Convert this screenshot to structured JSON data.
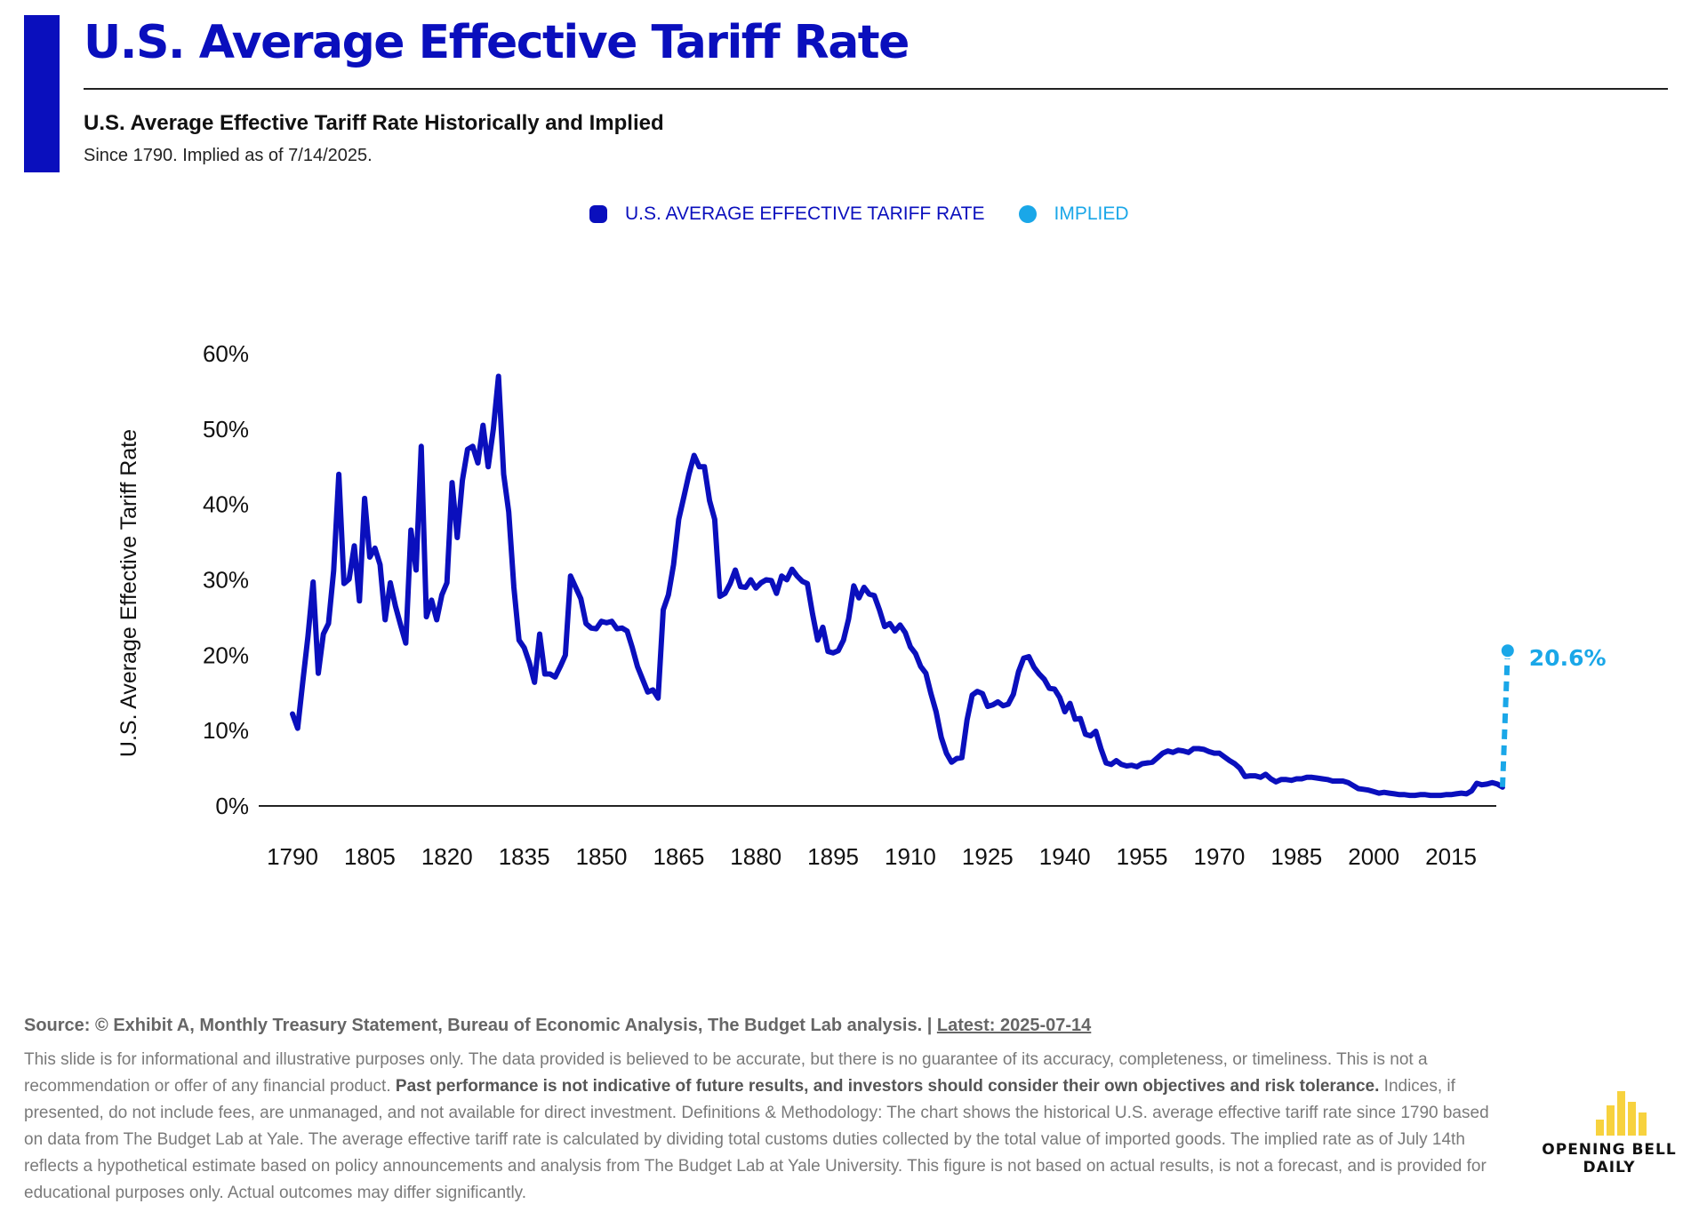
{
  "header": {
    "title": "U.S. Average Effective Tariff Rate",
    "subtitle": "U.S. Average Effective Tariff Rate Historically and Implied",
    "note": "Since 1790. Implied as of 7/14/2025."
  },
  "legend": {
    "main_label": "U.S. AVERAGE EFFECTIVE TARIFF RATE",
    "implied_label": "IMPLIED"
  },
  "colors": {
    "brand_blue": "#0a0fbd",
    "implied_blue": "#1aa7e8",
    "logo_yellow": "#f7d23e"
  },
  "chart_data": {
    "type": "line",
    "ylabel": "U.S. Average Effective Tariff Rate",
    "ylim": [
      0,
      60
    ],
    "xlim": [
      1790,
      2025
    ],
    "y_ticks": [
      "0%",
      "10%",
      "20%",
      "30%",
      "40%",
      "50%",
      "60%"
    ],
    "x_ticks": [
      "1790",
      "1805",
      "1820",
      "1835",
      "1850",
      "1865",
      "1880",
      "1895",
      "1910",
      "1925",
      "1940",
      "1955",
      "1970",
      "1985",
      "2000",
      "2015"
    ],
    "grid": false,
    "legend_position": "top-center",
    "series": [
      {
        "name": "U.S. AVERAGE EFFECTIVE TARIFF RATE",
        "color": "#0a0fbd",
        "points": [
          [
            1790,
            12.2
          ],
          [
            1791,
            10.3
          ],
          [
            1792,
            16.5
          ],
          [
            1793,
            22.5
          ],
          [
            1794,
            29.7
          ],
          [
            1795,
            17.6
          ],
          [
            1796,
            22.8
          ],
          [
            1797,
            24.2
          ],
          [
            1798,
            31.2
          ],
          [
            1799,
            44.0
          ],
          [
            1800,
            29.5
          ],
          [
            1801,
            30.1
          ],
          [
            1802,
            34.5
          ],
          [
            1803,
            27.2
          ],
          [
            1804,
            40.8
          ],
          [
            1805,
            33.0
          ],
          [
            1806,
            34.2
          ],
          [
            1807,
            32.0
          ],
          [
            1808,
            24.7
          ],
          [
            1809,
            29.6
          ],
          [
            1810,
            26.5
          ],
          [
            1811,
            24.0
          ],
          [
            1812,
            21.6
          ],
          [
            1813,
            36.6
          ],
          [
            1814,
            31.3
          ],
          [
            1815,
            47.7
          ],
          [
            1816,
            25.1
          ],
          [
            1817,
            27.3
          ],
          [
            1818,
            24.7
          ],
          [
            1819,
            28.0
          ],
          [
            1820,
            29.6
          ],
          [
            1821,
            42.9
          ],
          [
            1822,
            35.6
          ],
          [
            1823,
            43.2
          ],
          [
            1824,
            47.3
          ],
          [
            1825,
            47.7
          ],
          [
            1826,
            45.5
          ],
          [
            1827,
            50.5
          ],
          [
            1828,
            45.0
          ],
          [
            1829,
            50.0
          ],
          [
            1830,
            57.0
          ],
          [
            1831,
            44.0
          ],
          [
            1832,
            39.0
          ],
          [
            1833,
            29.0
          ],
          [
            1834,
            22.0
          ],
          [
            1835,
            21.0
          ],
          [
            1836,
            19.0
          ],
          [
            1837,
            16.4
          ],
          [
            1838,
            22.8
          ],
          [
            1839,
            17.5
          ],
          [
            1840,
            17.5
          ],
          [
            1841,
            17.1
          ],
          [
            1842,
            18.5
          ],
          [
            1843,
            20.0
          ],
          [
            1844,
            30.5
          ],
          [
            1845,
            29.0
          ],
          [
            1846,
            27.5
          ],
          [
            1847,
            24.2
          ],
          [
            1848,
            23.6
          ],
          [
            1849,
            23.5
          ],
          [
            1850,
            24.5
          ],
          [
            1851,
            24.3
          ],
          [
            1852,
            24.5
          ],
          [
            1853,
            23.5
          ],
          [
            1854,
            23.6
          ],
          [
            1855,
            23.2
          ],
          [
            1856,
            21.0
          ],
          [
            1857,
            18.5
          ],
          [
            1858,
            16.8
          ],
          [
            1859,
            15.1
          ],
          [
            1860,
            15.4
          ],
          [
            1861,
            14.3
          ],
          [
            1862,
            26.0
          ],
          [
            1863,
            28.0
          ],
          [
            1864,
            32.0
          ],
          [
            1865,
            38.0
          ],
          [
            1866,
            41.0
          ],
          [
            1867,
            44.0
          ],
          [
            1868,
            46.5
          ],
          [
            1869,
            45.0
          ],
          [
            1870,
            45.0
          ],
          [
            1871,
            40.5
          ],
          [
            1872,
            38.0
          ],
          [
            1873,
            27.8
          ],
          [
            1874,
            28.2
          ],
          [
            1875,
            29.5
          ],
          [
            1876,
            31.3
          ],
          [
            1877,
            29.1
          ],
          [
            1878,
            29.0
          ],
          [
            1879,
            30.0
          ],
          [
            1880,
            28.9
          ],
          [
            1881,
            29.6
          ],
          [
            1882,
            30.0
          ],
          [
            1883,
            29.9
          ],
          [
            1884,
            28.2
          ],
          [
            1885,
            30.5
          ],
          [
            1886,
            30.0
          ],
          [
            1887,
            31.4
          ],
          [
            1888,
            30.5
          ],
          [
            1889,
            29.8
          ],
          [
            1890,
            29.5
          ],
          [
            1891,
            25.5
          ],
          [
            1892,
            22.0
          ],
          [
            1893,
            23.7
          ],
          [
            1894,
            20.5
          ],
          [
            1895,
            20.3
          ],
          [
            1896,
            20.6
          ],
          [
            1897,
            22.0
          ],
          [
            1898,
            24.8
          ],
          [
            1899,
            29.2
          ],
          [
            1900,
            27.6
          ],
          [
            1901,
            29.0
          ],
          [
            1902,
            28.1
          ],
          [
            1903,
            27.9
          ],
          [
            1904,
            26.0
          ],
          [
            1905,
            23.8
          ],
          [
            1906,
            24.2
          ],
          [
            1907,
            23.2
          ],
          [
            1908,
            24.0
          ],
          [
            1909,
            23.0
          ],
          [
            1910,
            21.1
          ],
          [
            1911,
            20.2
          ],
          [
            1912,
            18.5
          ],
          [
            1913,
            17.6
          ],
          [
            1914,
            14.9
          ],
          [
            1915,
            12.5
          ],
          [
            1916,
            9.1
          ],
          [
            1917,
            7.0
          ],
          [
            1918,
            5.8
          ],
          [
            1919,
            6.3
          ],
          [
            1920,
            6.4
          ],
          [
            1921,
            11.4
          ],
          [
            1922,
            14.7
          ],
          [
            1923,
            15.2
          ],
          [
            1924,
            14.9
          ],
          [
            1925,
            13.2
          ],
          [
            1926,
            13.4
          ],
          [
            1927,
            13.8
          ],
          [
            1928,
            13.3
          ],
          [
            1929,
            13.5
          ],
          [
            1930,
            14.8
          ],
          [
            1931,
            17.8
          ],
          [
            1932,
            19.6
          ],
          [
            1933,
            19.8
          ],
          [
            1934,
            18.4
          ],
          [
            1935,
            17.5
          ],
          [
            1936,
            16.8
          ],
          [
            1937,
            15.6
          ],
          [
            1938,
            15.5
          ],
          [
            1939,
            14.4
          ],
          [
            1940,
            12.5
          ],
          [
            1941,
            13.6
          ],
          [
            1942,
            11.5
          ],
          [
            1943,
            11.6
          ],
          [
            1944,
            9.5
          ],
          [
            1945,
            9.3
          ],
          [
            1946,
            9.9
          ],
          [
            1947,
            7.6
          ],
          [
            1948,
            5.7
          ],
          [
            1949,
            5.5
          ],
          [
            1950,
            6.0
          ],
          [
            1951,
            5.5
          ],
          [
            1952,
            5.3
          ],
          [
            1953,
            5.4
          ],
          [
            1954,
            5.2
          ],
          [
            1955,
            5.6
          ],
          [
            1956,
            5.7
          ],
          [
            1957,
            5.8
          ],
          [
            1958,
            6.4
          ],
          [
            1959,
            7.0
          ],
          [
            1960,
            7.3
          ],
          [
            1961,
            7.1
          ],
          [
            1962,
            7.4
          ],
          [
            1963,
            7.3
          ],
          [
            1964,
            7.1
          ],
          [
            1965,
            7.6
          ],
          [
            1966,
            7.6
          ],
          [
            1967,
            7.5
          ],
          [
            1968,
            7.2
          ],
          [
            1969,
            7.0
          ],
          [
            1970,
            7.0
          ],
          [
            1971,
            6.5
          ],
          [
            1972,
            6.0
          ],
          [
            1973,
            5.6
          ],
          [
            1974,
            5.0
          ],
          [
            1975,
            3.9
          ],
          [
            1976,
            4.0
          ],
          [
            1977,
            4.0
          ],
          [
            1978,
            3.8
          ],
          [
            1979,
            4.2
          ],
          [
            1980,
            3.6
          ],
          [
            1981,
            3.2
          ],
          [
            1982,
            3.5
          ],
          [
            1983,
            3.5
          ],
          [
            1984,
            3.4
          ],
          [
            1985,
            3.6
          ],
          [
            1986,
            3.6
          ],
          [
            1987,
            3.8
          ],
          [
            1988,
            3.8
          ],
          [
            1989,
            3.7
          ],
          [
            1990,
            3.6
          ],
          [
            1991,
            3.5
          ],
          [
            1992,
            3.3
          ],
          [
            1993,
            3.3
          ],
          [
            1994,
            3.3
          ],
          [
            1995,
            3.1
          ],
          [
            1996,
            2.7
          ],
          [
            1997,
            2.3
          ],
          [
            1998,
            2.2
          ],
          [
            1999,
            2.1
          ],
          [
            2000,
            1.9
          ],
          [
            2001,
            1.7
          ],
          [
            2002,
            1.8
          ],
          [
            2003,
            1.7
          ],
          [
            2004,
            1.6
          ],
          [
            2005,
            1.5
          ],
          [
            2006,
            1.5
          ],
          [
            2007,
            1.4
          ],
          [
            2008,
            1.4
          ],
          [
            2009,
            1.5
          ],
          [
            2010,
            1.5
          ],
          [
            2011,
            1.4
          ],
          [
            2012,
            1.4
          ],
          [
            2013,
            1.4
          ],
          [
            2014,
            1.5
          ],
          [
            2015,
            1.5
          ],
          [
            2016,
            1.6
          ],
          [
            2017,
            1.7
          ],
          [
            2018,
            1.6
          ],
          [
            2019,
            2.0
          ],
          [
            2020,
            3.0
          ],
          [
            2021,
            2.8
          ],
          [
            2022,
            2.9
          ],
          [
            2023,
            3.1
          ],
          [
            2024,
            2.9
          ],
          [
            2025,
            2.5
          ]
        ]
      },
      {
        "name": "IMPLIED",
        "color": "#1aa7e8",
        "style": "dashed",
        "points": [
          [
            2025,
            2.5
          ],
          [
            2026,
            20.6
          ]
        ],
        "end_label": "20.6%"
      }
    ]
  },
  "footer": {
    "source_text": "Source: © Exhibit A, Monthly Treasury Statement, Bureau of Economic Analysis, The Budget Lab analysis. | ",
    "latest_text": "Latest: 2025-07-14",
    "disclaimer_part1": "This slide is for informational and illustrative purposes only. The data provided is believed to be accurate, but there is no guarantee of its accuracy, completeness, or timeliness. This is not a recommendation or offer of any financial product. ",
    "disclaimer_bold": "Past performance is not indicative of future results, and investors should consider their own objectives and risk tolerance.",
    "disclaimer_part2": " Indices, if presented, do not include fees, are unmanaged, and not available for direct investment. Definitions & Methodology: The chart shows the historical U.S. average effective tariff rate since 1790 based on data from The Budget Lab at Yale. The average effective tariff rate is calculated by dividing total customs duties collected by the total value of imported goods. The implied rate as of July 14th reflects a hypothetical estimate based on policy announcements and analysis from The Budget Lab at Yale University. This figure is not based on actual results, is not a forecast, and is provided for educational purposes only. Actual outcomes may differ significantly."
  },
  "logo": {
    "line1": "OPENING BELL",
    "line2": "DAILY"
  }
}
